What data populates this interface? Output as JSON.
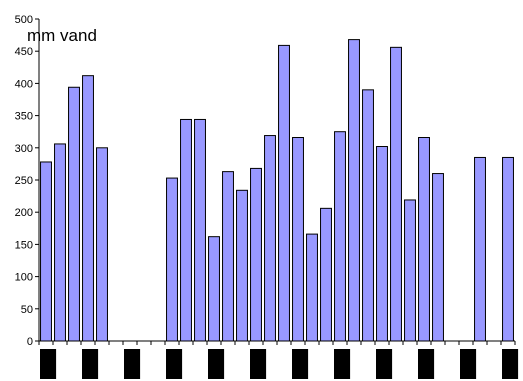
{
  "chart_data": {
    "type": "bar",
    "title": "",
    "xlabel": "",
    "ylabel": "mm vand",
    "ylim": [
      0,
      500
    ],
    "yticks": [
      0,
      50,
      100,
      150,
      200,
      250,
      300,
      350,
      400,
      450,
      500
    ],
    "grid": false,
    "legend": "none",
    "bar_color": "#9999ff",
    "bar_edge_color": "#000000",
    "category_count": 34,
    "values": [
      278,
      306,
      394,
      412,
      300,
      null,
      null,
      null,
      null,
      253,
      344,
      344,
      162,
      263,
      234,
      268,
      319,
      459,
      316,
      166,
      206,
      325,
      468,
      390,
      302,
      456,
      219,
      316,
      260,
      null,
      null,
      285,
      null,
      285
    ]
  }
}
